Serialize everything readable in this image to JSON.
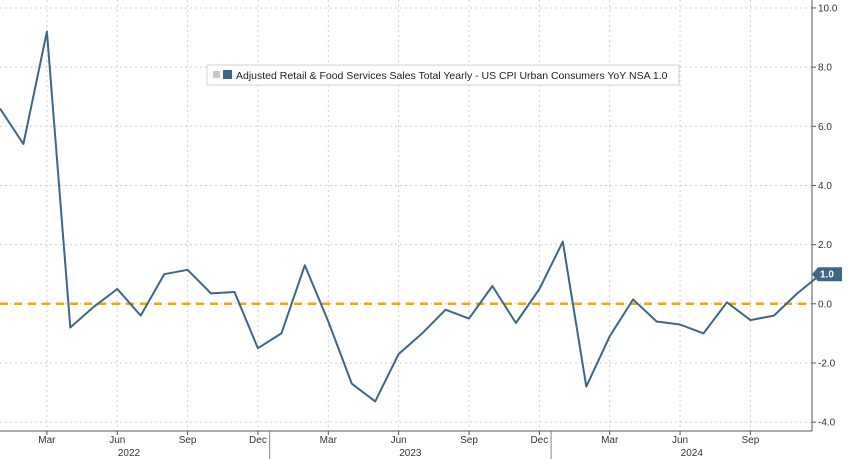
{
  "chart_data": {
    "type": "line",
    "title": "",
    "xlabel": "",
    "ylabel": "",
    "legend": {
      "position": "top",
      "entries": [
        "Adjusted Retail & Food Services Sales Total Yearly - US CPI Urban Consumers YoY NSA 1.0"
      ]
    },
    "grid": true,
    "ylim": [
      -4.3,
      10.1
    ],
    "yticks": [
      -4.0,
      -2.0,
      0.0,
      2.0,
      4.0,
      6.0,
      8.0,
      10.0
    ],
    "ytick_labels": [
      "-4.0",
      "-2.0",
      "0.0",
      "2.0",
      "4.0",
      "6.0",
      "8.0",
      "10.0"
    ],
    "x_month_ticks": [
      {
        "label": "Mar",
        "idx": 2
      },
      {
        "label": "Jun",
        "idx": 5
      },
      {
        "label": "Sep",
        "idx": 8
      },
      {
        "label": "Dec",
        "idx": 11
      },
      {
        "label": "Mar",
        "idx": 14
      },
      {
        "label": "Jun",
        "idx": 17
      },
      {
        "label": "Sep",
        "idx": 20
      },
      {
        "label": "Dec",
        "idx": 23
      },
      {
        "label": "Mar",
        "idx": 26
      },
      {
        "label": "Jun",
        "idx": 29
      },
      {
        "label": "Sep",
        "idx": 32
      }
    ],
    "x_years": [
      {
        "label": "2022",
        "idx": 5.5
      },
      {
        "label": "2023",
        "idx": 17.5
      },
      {
        "label": "2024",
        "idx": 29.5
      }
    ],
    "x_dividers": [
      11.5,
      23.5
    ],
    "series": [
      {
        "name": "Adjusted Retail & Food Services Sales Total Yearly - US CPI Urban Consumers YoY NSA 1.0",
        "color": "#3d6687",
        "x": [
          "2021-11",
          "2021-12",
          "2022-01",
          "2022-02",
          "2022-03",
          "2022-04",
          "2022-05",
          "2022-06",
          "2022-07",
          "2022-08",
          "2022-09",
          "2022-10",
          "2022-11",
          "2022-12",
          "2023-01",
          "2023-02",
          "2023-03",
          "2023-04",
          "2023-05",
          "2023-06",
          "2023-07",
          "2023-08",
          "2023-09",
          "2023-10",
          "2023-11",
          "2023-12",
          "2024-01",
          "2024-02",
          "2024-03",
          "2024-04",
          "2024-05",
          "2024-06",
          "2024-07",
          "2024-08",
          "2024-09",
          "2024-10"
        ],
        "values": [
          6.6,
          5.4,
          9.2,
          -0.8,
          -0.1,
          0.5,
          -0.4,
          1.0,
          1.15,
          0.35,
          0.4,
          -1.5,
          -1.0,
          1.3,
          -0.6,
          -2.7,
          -3.3,
          -1.7,
          -1.0,
          -0.2,
          -0.5,
          0.6,
          -0.65,
          0.5,
          2.1,
          -2.8,
          -1.1,
          0.15,
          -0.6,
          -0.7,
          -1.0,
          0.05,
          -0.55,
          -0.4,
          0.35,
          1.0
        ]
      }
    ],
    "reference_line": {
      "y": 0.0,
      "color": "#f0a800",
      "style": "dashed"
    },
    "last_value_label": "1.0",
    "last_value_color": "#3d6687"
  }
}
